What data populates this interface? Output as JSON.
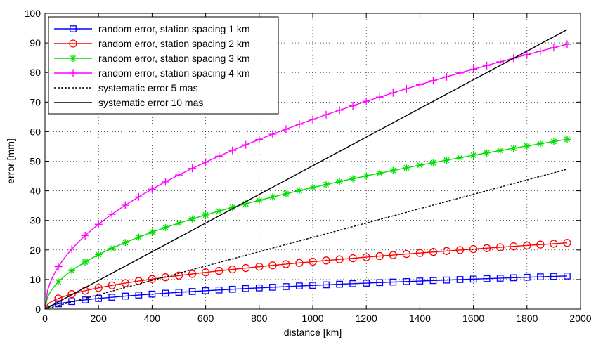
{
  "chart_data": {
    "type": "line",
    "title": "",
    "xlabel": "distance [km]",
    "ylabel": "error [mm]",
    "xlim": [
      0,
      2000
    ],
    "ylim": [
      0,
      100
    ],
    "xticks": [
      0,
      200,
      400,
      600,
      800,
      1000,
      1200,
      1400,
      1600,
      1800,
      2000
    ],
    "yticks": [
      0,
      10,
      20,
      30,
      40,
      50,
      60,
      70,
      80,
      90,
      100
    ],
    "grid": true,
    "legend_position": "top-left",
    "series": [
      {
        "name": "random error, station spacing 1 km",
        "color": "#0000ff",
        "marker": "square",
        "line_style": "solid",
        "model": "sqrt",
        "coefficient": 0.2535,
        "x": [
          0,
          50,
          100,
          150,
          200,
          250,
          300,
          350,
          400,
          450,
          500,
          550,
          600,
          650,
          700,
          750,
          800,
          850,
          900,
          950,
          1000,
          1050,
          1100,
          1150,
          1200,
          1250,
          1300,
          1350,
          1400,
          1450,
          1500,
          1550,
          1600,
          1650,
          1700,
          1750,
          1800,
          1850,
          1900,
          1950
        ],
        "y": [
          0,
          1.79,
          2.54,
          3.1,
          3.59,
          4.01,
          4.39,
          4.74,
          5.07,
          5.38,
          5.67,
          5.95,
          6.21,
          6.46,
          6.71,
          6.94,
          7.17,
          7.39,
          7.61,
          7.81,
          8.02,
          8.21,
          8.41,
          8.6,
          8.78,
          8.96,
          9.14,
          9.31,
          9.49,
          9.65,
          9.82,
          9.98,
          10.14,
          10.3,
          10.45,
          10.6,
          10.76,
          10.9,
          11.05,
          11.19
        ]
      },
      {
        "name": "random error, station spacing 2 km",
        "color": "#ff0000",
        "marker": "circle",
        "line_style": "solid",
        "model": "sqrt",
        "coefficient": 0.507,
        "x": [
          0,
          50,
          100,
          150,
          200,
          250,
          300,
          350,
          400,
          450,
          500,
          550,
          600,
          650,
          700,
          750,
          800,
          850,
          900,
          950,
          1000,
          1050,
          1100,
          1150,
          1200,
          1250,
          1300,
          1350,
          1400,
          1450,
          1500,
          1550,
          1600,
          1650,
          1700,
          1750,
          1800,
          1850,
          1900,
          1950
        ],
        "y": [
          0,
          3.59,
          5.07,
          6.21,
          7.17,
          8.02,
          8.78,
          9.49,
          10.14,
          10.76,
          11.34,
          11.89,
          12.42,
          12.93,
          13.41,
          13.88,
          14.34,
          14.78,
          15.21,
          15.63,
          16.03,
          16.43,
          16.82,
          17.19,
          17.56,
          17.93,
          18.28,
          18.63,
          18.97,
          19.31,
          19.64,
          19.96,
          20.28,
          20.59,
          20.9,
          21.21,
          21.51,
          21.81,
          22.1,
          22.39
        ]
      },
      {
        "name": "random error, station spacing 3 km",
        "color": "#00dd00",
        "marker": "star",
        "line_style": "solid",
        "model": "sqrt",
        "coefficient": 1.3,
        "x": [
          0,
          50,
          100,
          150,
          200,
          250,
          300,
          350,
          400,
          450,
          500,
          550,
          600,
          650,
          700,
          750,
          800,
          850,
          900,
          950,
          1000,
          1050,
          1100,
          1150,
          1200,
          1250,
          1300,
          1350,
          1400,
          1450,
          1500,
          1550,
          1600,
          1650,
          1700,
          1750,
          1800,
          1850,
          1900,
          1950
        ],
        "y": [
          0,
          9.19,
          13.0,
          15.92,
          18.38,
          20.55,
          22.52,
          24.32,
          26.0,
          27.58,
          29.07,
          30.49,
          31.84,
          33.14,
          34.39,
          35.6,
          36.77,
          37.9,
          39.0,
          40.07,
          41.11,
          42.13,
          43.12,
          44.08,
          45.03,
          45.96,
          46.87,
          47.77,
          48.64,
          49.5,
          50.35,
          51.18,
          52.0,
          52.81,
          53.6,
          54.38,
          55.15,
          55.92,
          56.67,
          57.41
        ]
      },
      {
        "name": "random error, station spacing 4 km",
        "color": "#ff00ff",
        "marker": "plus",
        "line_style": "solid",
        "model": "sqrt",
        "coefficient": 2.028,
        "x": [
          0,
          50,
          100,
          150,
          200,
          250,
          300,
          350,
          400,
          450,
          500,
          550,
          600,
          650,
          700,
          750,
          800,
          850,
          900,
          950,
          1000,
          1050,
          1100,
          1150,
          1200,
          1250,
          1300,
          1350,
          1400,
          1450,
          1500,
          1550,
          1600,
          1650,
          1700,
          1750,
          1800,
          1850,
          1900,
          1950
        ],
        "y": [
          0,
          14.34,
          20.28,
          24.84,
          28.68,
          32.07,
          35.13,
          37.94,
          40.56,
          43.02,
          45.35,
          47.56,
          49.68,
          51.71,
          53.66,
          55.54,
          57.36,
          59.13,
          60.84,
          62.51,
          64.13,
          65.72,
          67.26,
          68.77,
          70.25,
          71.7,
          73.12,
          74.51,
          75.88,
          77.23,
          78.55,
          79.84,
          81.12,
          82.38,
          83.62,
          84.84,
          86.04,
          87.23,
          88.4,
          89.55
        ]
      },
      {
        "name": "systematic error 5 mas",
        "color": "#000000",
        "marker": "none",
        "line_style": "dashed",
        "model": "linear",
        "slope": 0.02424,
        "x": [
          0,
          1950
        ],
        "y": [
          0,
          47.3
        ]
      },
      {
        "name": "systematic error 10 mas",
        "color": "#000000",
        "marker": "none",
        "line_style": "solid",
        "model": "linear",
        "slope": 0.04848,
        "x": [
          0,
          1950
        ],
        "y": [
          0,
          94.5
        ]
      }
    ]
  }
}
